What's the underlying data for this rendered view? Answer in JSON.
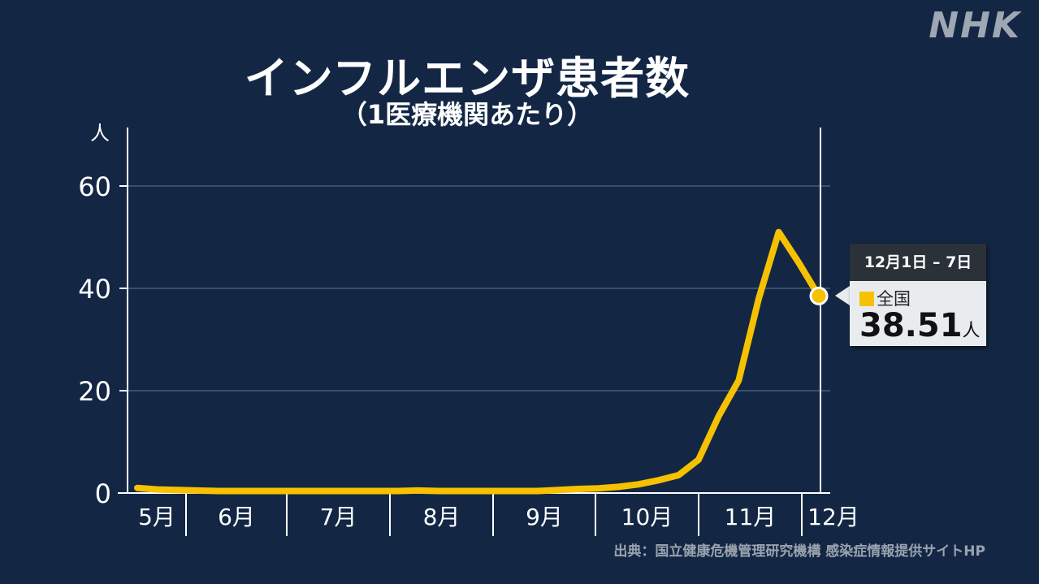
{
  "logo": "NHK",
  "source": "出典：国立健康危機管理研究機構 感染症情報提供サイトHP",
  "colors": {
    "background": "#132745",
    "line": "#f6c100",
    "grid": "#3a4f6e"
  },
  "tooltip": {
    "header": "12月1日 – 7日",
    "series": "全国",
    "value": "38.51",
    "unit": "人"
  },
  "chart_data": {
    "type": "line",
    "title": "インフルエンザ患者数",
    "subtitle": "（1医療機関あたり）",
    "ylabel": "人",
    "ylim": [
      0,
      70
    ],
    "yticks": [
      0,
      20,
      40,
      60
    ],
    "grid": true,
    "months": [
      "5月",
      "6月",
      "7月",
      "8月",
      "9月",
      "10月",
      "11月",
      "12月"
    ],
    "series": [
      {
        "name": "全国",
        "values": [
          1.0,
          0.7,
          0.6,
          0.5,
          0.4,
          0.4,
          0.4,
          0.4,
          0.4,
          0.4,
          0.4,
          0.4,
          0.4,
          0.4,
          0.5,
          0.4,
          0.4,
          0.4,
          0.4,
          0.4,
          0.4,
          0.6,
          0.8,
          0.9,
          1.2,
          1.7,
          2.5,
          3.5,
          6.5,
          15.0,
          22.0,
          38.0,
          51.0,
          45.0,
          38.51
        ]
      }
    ]
  }
}
